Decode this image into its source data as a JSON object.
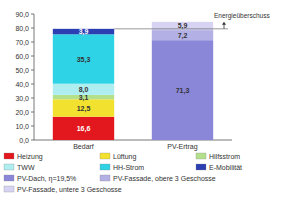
{
  "chart_data": {
    "type": "bar",
    "stacked": true,
    "data_labels": true,
    "grid": false,
    "legend": "bottom",
    "annotation": "Energieüberschuss",
    "categories": [
      "Bedarf",
      "PV-Ertrag"
    ],
    "ylim": [
      0,
      90
    ],
    "yticks": [
      {
        "value": 0,
        "label": "0,0"
      },
      {
        "value": 10,
        "label": "10,0"
      },
      {
        "value": 20,
        "label": "20,0"
      },
      {
        "value": 30,
        "label": "30,0"
      },
      {
        "value": 40,
        "label": "40,0"
      },
      {
        "value": 50,
        "label": "50,0"
      },
      {
        "value": 60,
        "label": "60,0"
      },
      {
        "value": 70,
        "label": "70,0"
      },
      {
        "value": 80,
        "label": "80,0"
      },
      {
        "value": 90,
        "label": "90,0"
      }
    ],
    "series": [
      {
        "name": "Heizung",
        "color": "#e3171e",
        "values": [
          16.6,
          null
        ],
        "value_labels": [
          "16,6",
          null
        ]
      },
      {
        "name": "Lüftung",
        "color": "#f2e12e",
        "values": [
          12.5,
          null
        ],
        "value_labels": [
          "12,5",
          null
        ]
      },
      {
        "name": "Hilfsstrom",
        "color": "#b4e08c",
        "values": [
          3.1,
          null
        ],
        "value_labels": [
          "3,1",
          null
        ]
      },
      {
        "name": "TWW",
        "color": "#aeeef0",
        "values": [
          8.0,
          null
        ],
        "value_labels": [
          "8,0",
          null
        ]
      },
      {
        "name": "HH-Strom",
        "color": "#2fd3e6",
        "values": [
          35.3,
          null
        ],
        "value_labels": [
          "35,3",
          null
        ]
      },
      {
        "name": "E-Mobilität",
        "color": "#2b3fb3",
        "values": [
          3.9,
          null
        ],
        "value_labels": [
          "3,9",
          null
        ]
      },
      {
        "name": "PV-Dach, η=19,5%",
        "color": "#8a86d8",
        "values": [
          null,
          71.3
        ],
        "value_labels": [
          null,
          "71,3"
        ]
      },
      {
        "name": "PV-Fassade, obere 3 Geschosse",
        "color": "#b3b0e6",
        "values": [
          null,
          7.2
        ],
        "value_labels": [
          null,
          "7,2"
        ]
      },
      {
        "name": "PV-Fassade, untere 3 Geschosse",
        "color": "#d6d4f2",
        "values": [
          null,
          5.9
        ],
        "value_labels": [
          null,
          "5,9"
        ]
      }
    ]
  }
}
